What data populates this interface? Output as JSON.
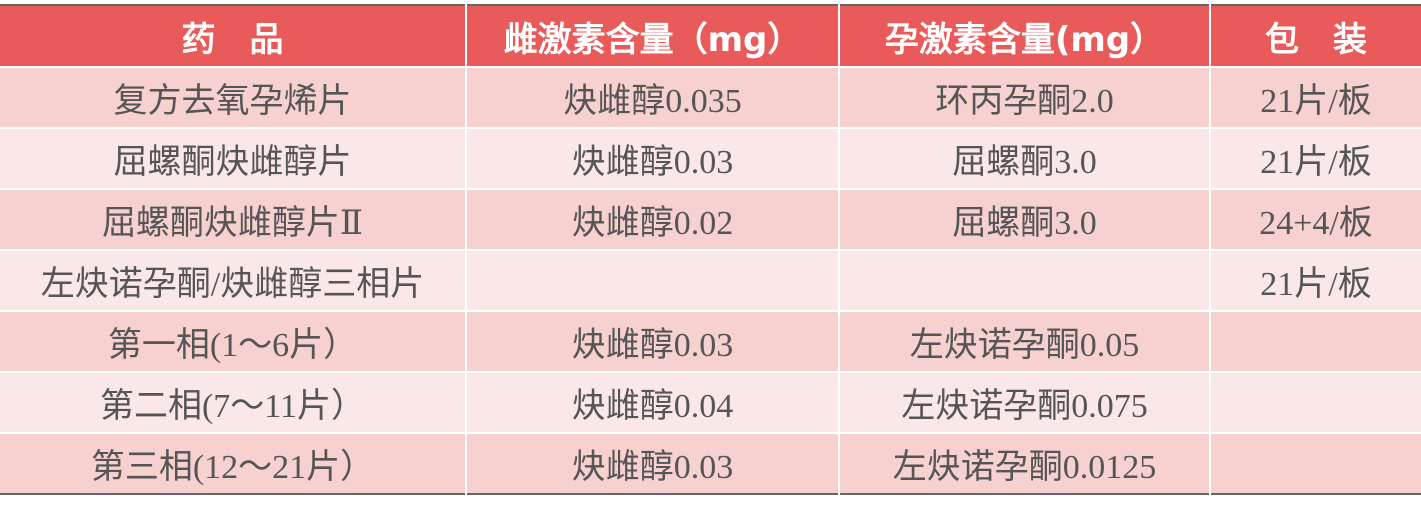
{
  "table": {
    "headers": [
      "药　品",
      "雌激素含量（mg）",
      "孕激素含量(mg）",
      "包　装"
    ],
    "rows": [
      [
        "复方去氧孕烯片",
        "炔雌醇0.035",
        "环丙孕酮2.0",
        "21片/板"
      ],
      [
        "屈螺酮炔雌醇片",
        "炔雌醇0.03",
        "屈螺酮3.0",
        "21片/板"
      ],
      [
        "屈螺酮炔雌醇片Ⅱ",
        "炔雌醇0.02",
        "屈螺酮3.0",
        "24+4/板"
      ],
      [
        "左炔诺孕酮/炔雌醇三相片",
        "",
        "",
        "21片/板"
      ],
      [
        "第一相(1～6片）",
        "炔雌醇0.03",
        "左炔诺孕酮0.05",
        ""
      ],
      [
        "第二相(7～11片）",
        "炔雌醇0.04",
        "左炔诺孕酮0.075",
        ""
      ],
      [
        "第三相(12～21片）",
        "炔雌醇0.03",
        "左炔诺孕酮0.0125",
        ""
      ]
    ]
  },
  "colors": {
    "header": "#e95b5b",
    "row_dark": "#f7d0d0",
    "row_light": "#fae8e8",
    "text": "#555555"
  }
}
